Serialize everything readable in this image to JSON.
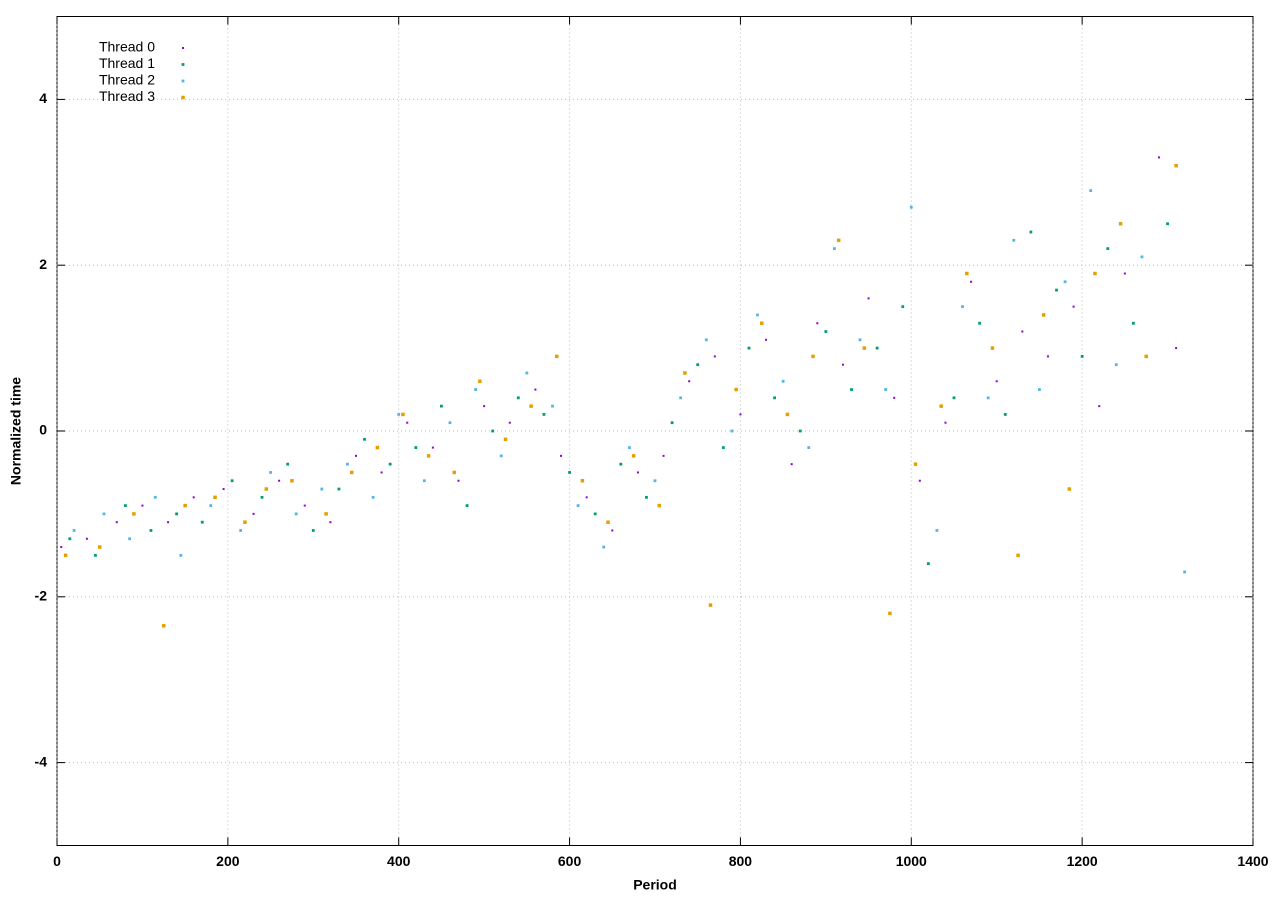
{
  "chart_data": {
    "type": "scatter",
    "xlabel": "Period",
    "ylabel": "Normalized time",
    "xlim": [
      0,
      1400
    ],
    "xticks": [
      0,
      200,
      400,
      600,
      800,
      1000,
      1200,
      1400
    ],
    "ylim": [
      -5,
      5
    ],
    "yticks": [
      -4,
      -2,
      0,
      2,
      4
    ],
    "grid": true,
    "legend": "upper-left",
    "series": [
      {
        "name": "Thread 0",
        "color": "#9400d3",
        "x": [
          5,
          35,
          70,
          100,
          130,
          160,
          195,
          230,
          260,
          290,
          320,
          350,
          380,
          410,
          440,
          470,
          500,
          530,
          560,
          590,
          620,
          650,
          680,
          710,
          740,
          770,
          800,
          830,
          860,
          890,
          920,
          950,
          980,
          1010,
          1040,
          1070,
          1100,
          1130,
          1160,
          1190,
          1220,
          1250,
          1290,
          1310
        ],
        "values": [
          -1.4,
          -1.3,
          -1.1,
          -0.9,
          -1.1,
          -0.8,
          -0.7,
          -1.0,
          -0.6,
          -0.9,
          -1.1,
          -0.3,
          -0.5,
          0.1,
          -0.2,
          -0.6,
          0.3,
          0.1,
          0.5,
          -0.3,
          -0.8,
          -1.2,
          -0.5,
          -0.3,
          0.6,
          0.9,
          0.2,
          1.1,
          -0.4,
          1.3,
          0.8,
          1.6,
          0.4,
          -0.6,
          0.1,
          1.8,
          0.6,
          1.2,
          0.9,
          1.5,
          0.3,
          1.9,
          3.3,
          1.0
        ]
      },
      {
        "name": "Thread 1",
        "color": "#009e73",
        "x": [
          15,
          45,
          80,
          110,
          140,
          170,
          205,
          240,
          270,
          300,
          330,
          360,
          390,
          420,
          450,
          480,
          510,
          540,
          570,
          600,
          630,
          660,
          690,
          720,
          750,
          780,
          810,
          840,
          870,
          900,
          930,
          960,
          990,
          1020,
          1050,
          1080,
          1110,
          1140,
          1170,
          1200,
          1230,
          1260,
          1300
        ],
        "values": [
          -1.3,
          -1.5,
          -0.9,
          -1.2,
          -1.0,
          -1.1,
          -0.6,
          -0.8,
          -0.4,
          -1.2,
          -0.7,
          -0.1,
          -0.4,
          -0.2,
          0.3,
          -0.9,
          0.0,
          0.4,
          0.2,
          -0.5,
          -1.0,
          -0.4,
          -0.8,
          0.1,
          0.8,
          -0.2,
          1.0,
          0.4,
          0.0,
          1.2,
          0.5,
          1.0,
          1.5,
          -1.6,
          0.4,
          1.3,
          0.2,
          2.4,
          1.7,
          0.9,
          2.2,
          1.3,
          2.5
        ]
      },
      {
        "name": "Thread 2",
        "color": "#56b4e9",
        "x": [
          20,
          55,
          85,
          115,
          145,
          180,
          215,
          250,
          280,
          310,
          340,
          370,
          400,
          430,
          460,
          490,
          520,
          550,
          580,
          610,
          640,
          670,
          700,
          730,
          760,
          790,
          820,
          850,
          880,
          910,
          940,
          970,
          1000,
          1030,
          1060,
          1090,
          1120,
          1150,
          1180,
          1210,
          1240,
          1270,
          1320
        ],
        "values": [
          -1.2,
          -1.0,
          -1.3,
          -0.8,
          -1.5,
          -0.9,
          -1.2,
          -0.5,
          -1.0,
          -0.7,
          -0.4,
          -0.8,
          0.2,
          -0.6,
          0.1,
          0.5,
          -0.3,
          0.7,
          0.3,
          -0.9,
          -1.4,
          -0.2,
          -0.6,
          0.4,
          1.1,
          0.0,
          1.4,
          0.6,
          -0.2,
          2.2,
          1.1,
          0.5,
          2.7,
          -1.2,
          1.5,
          0.4,
          2.3,
          0.5,
          1.8,
          2.9,
          0.8,
          2.1,
          -1.7
        ]
      },
      {
        "name": "Thread 3",
        "color": "#e69f00",
        "x": [
          10,
          50,
          90,
          125,
          150,
          185,
          220,
          245,
          275,
          315,
          345,
          375,
          405,
          435,
          465,
          495,
          525,
          555,
          585,
          615,
          645,
          675,
          705,
          735,
          765,
          795,
          825,
          855,
          885,
          915,
          945,
          975,
          1005,
          1035,
          1065,
          1095,
          1125,
          1155,
          1185,
          1215,
          1245,
          1275,
          1310
        ],
        "values": [
          -1.5,
          -1.4,
          -1.0,
          -2.35,
          -0.9,
          -0.8,
          -1.1,
          -0.7,
          -0.6,
          -1.0,
          -0.5,
          -0.2,
          0.2,
          -0.3,
          -0.5,
          0.6,
          -0.1,
          0.3,
          0.9,
          -0.6,
          -1.1,
          -0.3,
          -0.9,
          0.7,
          -2.1,
          0.5,
          1.3,
          0.2,
          0.9,
          2.3,
          1.0,
          -2.2,
          -0.4,
          0.3,
          1.9,
          1.0,
          -1.5,
          1.4,
          -0.7,
          1.9,
          2.5,
          0.9,
          3.2
        ]
      }
    ]
  }
}
